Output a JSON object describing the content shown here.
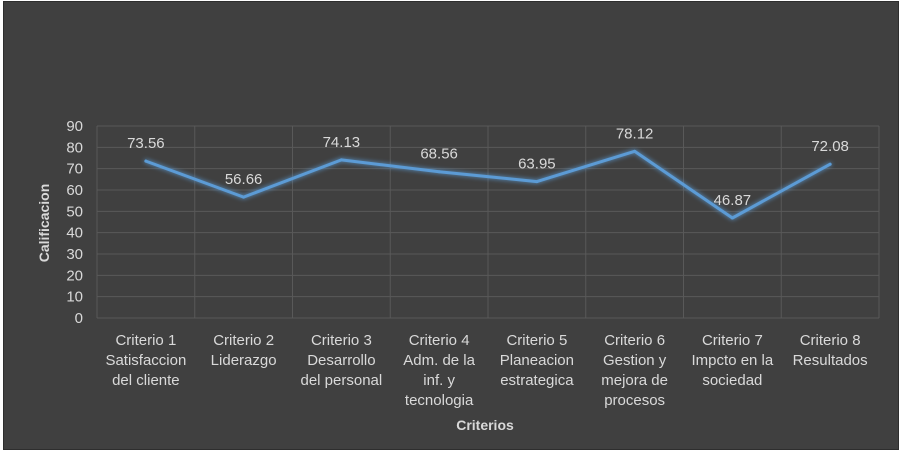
{
  "chart_data": {
    "type": "line",
    "title": "",
    "xlabel": "Criterios",
    "ylabel": "Calificacion",
    "ylim": [
      0,
      90
    ],
    "ytick_step": 10,
    "grid": true,
    "categories": [
      [
        "Criterio 1",
        "Satisfaccion",
        "del cliente"
      ],
      [
        "Criterio 2",
        "Liderazgo"
      ],
      [
        "Criterio 3",
        "Desarrollo",
        "del personal"
      ],
      [
        "Criterio 4",
        "Adm. de la",
        "inf. y",
        "tecnologia"
      ],
      [
        "Criterio 5",
        "Planeacion",
        "estrategica"
      ],
      [
        "Criterio 6",
        "Gestion y",
        "mejora de",
        "procesos"
      ],
      [
        "Criterio 7",
        "Impcto en la",
        "sociedad"
      ],
      [
        "Criterio 8",
        "Resultados"
      ]
    ],
    "series": [
      {
        "values": [
          73.56,
          56.66,
          74.13,
          68.56,
          63.95,
          78.12,
          46.87,
          72.08
        ],
        "data_labels": [
          "73.56",
          "56.66",
          "74.13",
          "68.56",
          "63.95",
          "78.12",
          "46.87",
          "72.08"
        ],
        "color": "#5b9bd5"
      }
    ],
    "colors": {
      "background": "#404040",
      "gridline": "#595959",
      "text": "#d9d9d9"
    }
  }
}
